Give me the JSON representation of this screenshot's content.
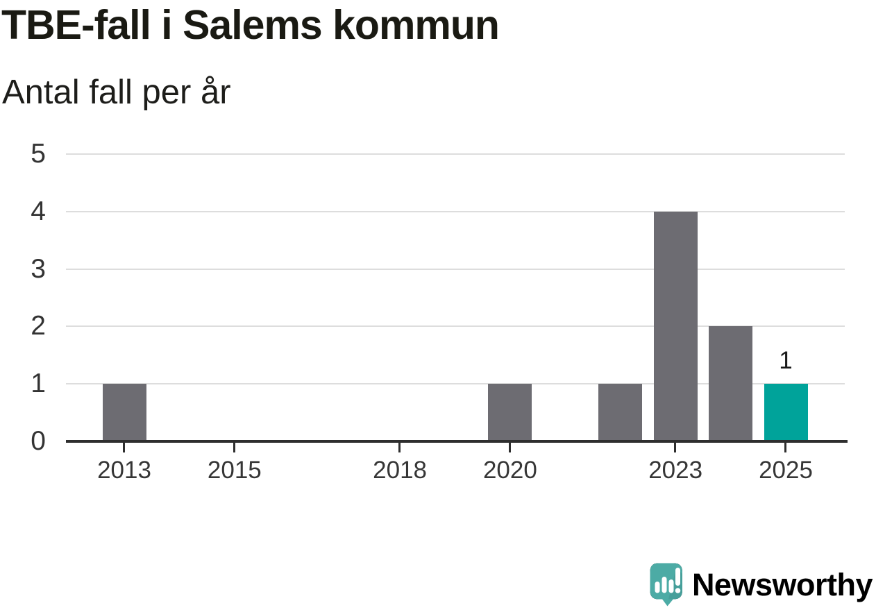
{
  "page": {
    "title": "TBE-fall i Salems kommun",
    "subtitle": "Antal fall per år"
  },
  "brand": {
    "name": "Newsworthy",
    "logo_icon": "newsworthy-speech-bubble-chart-icon",
    "color": "#48a5a1"
  },
  "colors": {
    "bar_default": "#6d6c72",
    "bar_highlight": "#00a39a",
    "axis": "#2e2e2e",
    "gridline": "#dddddd",
    "tick_label": "#363636",
    "title_text": "#1a1a13"
  },
  "chart_data": {
    "type": "bar",
    "title": "TBE-fall i Salems kommun",
    "subtitle": "Antal fall per år",
    "categories": [
      2013,
      2014,
      2015,
      2016,
      2017,
      2018,
      2019,
      2020,
      2021,
      2022,
      2023,
      2024,
      2025
    ],
    "values": [
      1,
      0,
      0,
      0,
      0,
      0,
      0,
      1,
      0,
      1,
      4,
      2,
      1
    ],
    "highlight_category": 2025,
    "data_labels": [
      {
        "category": 2025,
        "text": "1"
      }
    ],
    "x_tick_labels": [
      "2013",
      "2015",
      "2018",
      "2020",
      "2023",
      "2025"
    ],
    "y_ticks": [
      0,
      1,
      2,
      3,
      4,
      5
    ],
    "ylim": [
      0,
      5
    ],
    "xlabel": "",
    "ylabel": "Antal fall per år",
    "grid": "horizontal",
    "legend": "none"
  }
}
